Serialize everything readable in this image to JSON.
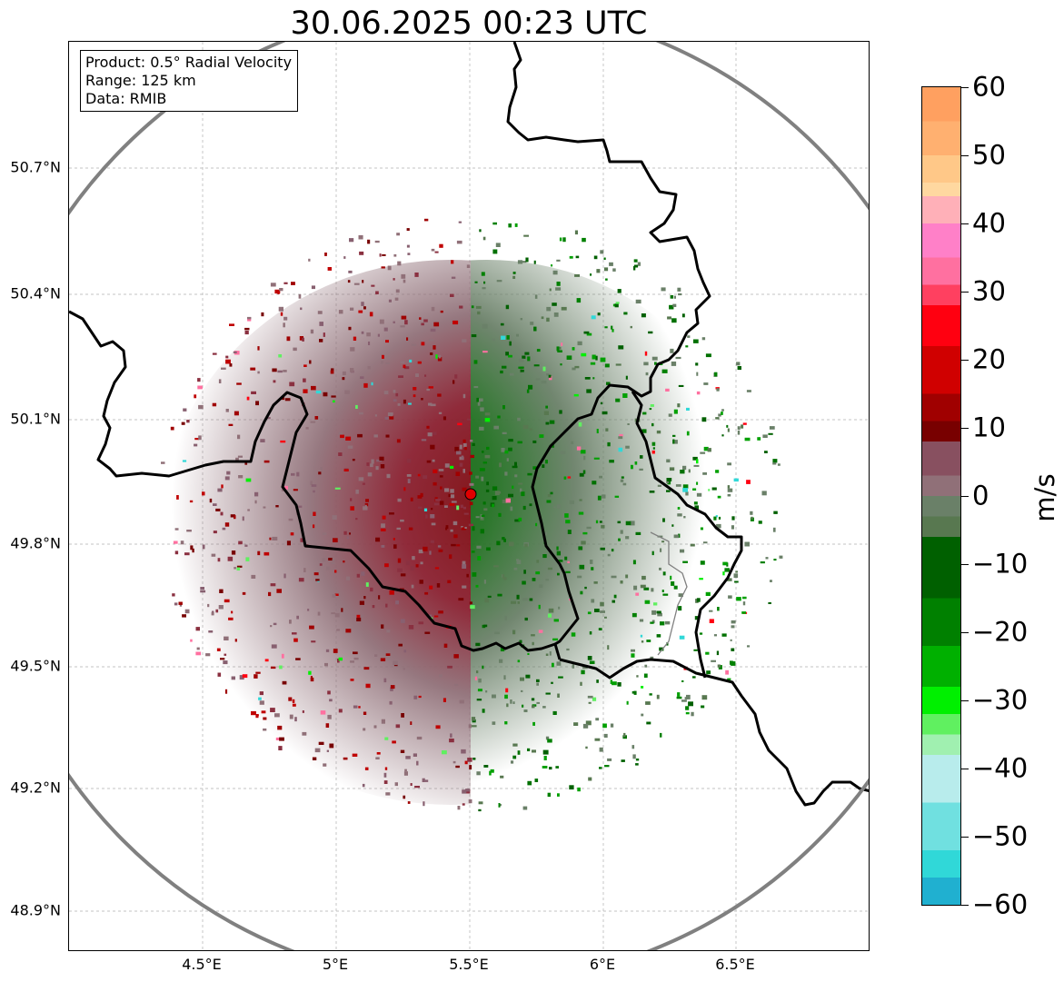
{
  "title": "30.06.2025 00:23 UTC",
  "info": {
    "product": "Product: 0.5° Radial Velocity",
    "range": "Range: 125 km",
    "data": "Data: RMIB"
  },
  "map": {
    "radar_site": {
      "lon": 5.5,
      "lat": 49.91,
      "name": ""
    },
    "range_km": 125,
    "lat_ticks": [
      "50.7°N",
      "50.4°N",
      "50.1°N",
      "49.8°N",
      "49.5°N",
      "49.2°N",
      "48.9°N"
    ],
    "lon_ticks": [
      "4.5°E",
      "5°E",
      "5.5°E",
      "6°E",
      "6.5°E"
    ],
    "range_ring_color": "#808080",
    "border_color": "#000000",
    "gridlines": true
  },
  "colorbar": {
    "label": "m/s",
    "min": -60,
    "max": 60,
    "ticks": [
      "60",
      "50",
      "40",
      "30",
      "20",
      "10",
      "0",
      "−10",
      "−20",
      "−30",
      "−40",
      "−50",
      "−60"
    ],
    "stops": [
      {
        "v": 60,
        "c": "#ffa060"
      },
      {
        "v": 55,
        "c": "#ffb070"
      },
      {
        "v": 50,
        "c": "#ffc888"
      },
      {
        "v": 46,
        "c": "#ffd8a0"
      },
      {
        "v": 44,
        "c": "#ffb0b8"
      },
      {
        "v": 40,
        "c": "#ff80c8"
      },
      {
        "v": 35,
        "c": "#ff70a0"
      },
      {
        "v": 31,
        "c": "#ff4060"
      },
      {
        "v": 28,
        "c": "#ff0010"
      },
      {
        "v": 22,
        "c": "#d00000"
      },
      {
        "v": 15,
        "c": "#a00000"
      },
      {
        "v": 11,
        "c": "#780000"
      },
      {
        "v": 8,
        "c": "#885060"
      },
      {
        "v": 3,
        "c": "#907078"
      },
      {
        "v": 0,
        "c": "#6a8068"
      },
      {
        "v": -3,
        "c": "#587850"
      },
      {
        "v": -6,
        "c": "#006000"
      },
      {
        "v": -15,
        "c": "#008000"
      },
      {
        "v": -22,
        "c": "#00b000"
      },
      {
        "v": -28,
        "c": "#00f000"
      },
      {
        "v": -32,
        "c": "#60f060"
      },
      {
        "v": -35,
        "c": "#a0f0b0"
      },
      {
        "v": -38,
        "c": "#b8ecec"
      },
      {
        "v": -45,
        "c": "#70e0e0"
      },
      {
        "v": -52,
        "c": "#30d8d8"
      },
      {
        "v": -56,
        "c": "#20b0d0"
      },
      {
        "v": -60,
        "c": "#2080c0"
      }
    ]
  }
}
